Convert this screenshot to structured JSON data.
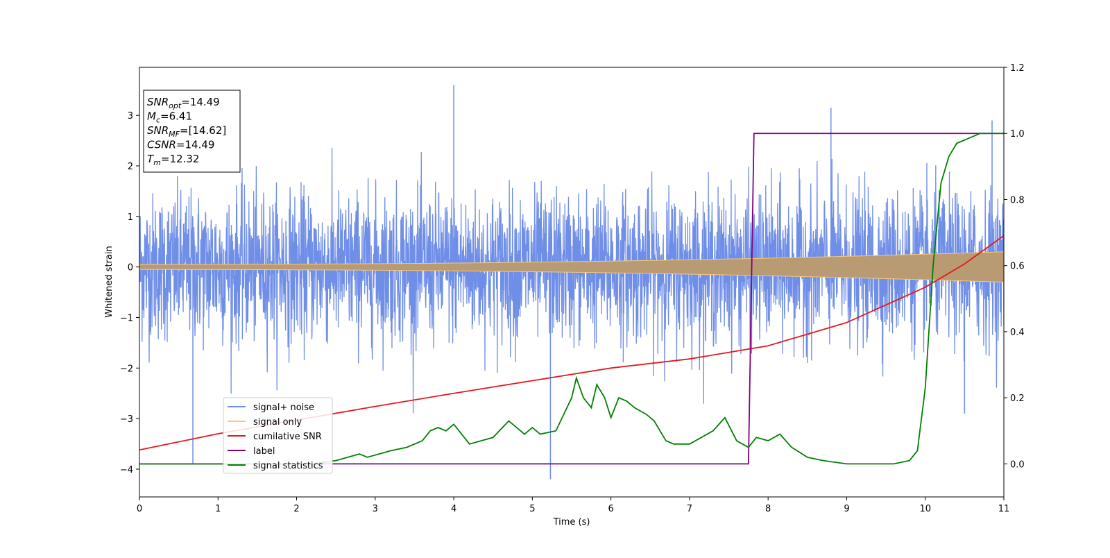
{
  "chart_data": {
    "type": "line",
    "xlabel": "Time (s)",
    "ylabel": "Whitened strain",
    "xlim": [
      0,
      11
    ],
    "ylim": [
      -4.55,
      3.95
    ],
    "y2lim": [
      -0.1,
      1.2
    ],
    "x_ticks": [
      0,
      1,
      2,
      3,
      4,
      5,
      6,
      7,
      8,
      9,
      10,
      11
    ],
    "y_ticks": [
      -4,
      -3,
      -2,
      -1,
      0,
      1,
      2,
      3
    ],
    "y2_ticks": [
      0.0,
      0.2,
      0.4,
      0.6,
      0.8,
      1.0,
      1.2
    ],
    "grid": false,
    "legend_position": "lower-left",
    "info_box": {
      "lines": [
        {
          "sym": "SNR",
          "sub": "opt",
          "rest": "=14.49"
        },
        {
          "sym": "M",
          "sub": "c",
          "rest": "=6.41"
        },
        {
          "sym": "SNR",
          "sub": "MF",
          "rest": "=[14.62]"
        },
        {
          "sym": "CSNR",
          "sub": "",
          "rest": "=14.49"
        },
        {
          "sym": "T",
          "sub": "m",
          "rest": "=12.32"
        }
      ]
    },
    "series": [
      {
        "name": "signal+ noise",
        "color": "#6f8ee8",
        "axis": "left",
        "description": "Noisy whitened strain, values roughly between -2 and 2 with spikes up to 3.6 and down to -4.2",
        "spikes": [
          [
            0.68,
            -3.9
          ],
          [
            4.0,
            3.6
          ],
          [
            5.23,
            -4.2
          ],
          [
            8.8,
            3.15
          ],
          [
            10.5,
            -2.9
          ],
          [
            10.85,
            2.9
          ]
        ]
      },
      {
        "name": "signal only",
        "color": "#f5c97a",
        "axis": "left",
        "description": "Chirp signal, amplitude growing from about 0.05 at t=0 to about 0.3 at t=11",
        "amplitude_start": 0.05,
        "amplitude_end": 0.3
      },
      {
        "name": "cumilative SNR",
        "color": "#e31a1c",
        "axis": "left",
        "x": [
          0,
          1,
          2,
          3,
          4,
          5,
          6,
          7,
          8,
          9,
          10,
          10.5,
          11
        ],
        "y": [
          -3.62,
          -3.3,
          -3.03,
          -2.76,
          -2.5,
          -2.25,
          -2.0,
          -1.82,
          -1.56,
          -1.1,
          -0.4,
          0.06,
          0.62
        ]
      },
      {
        "name": "label",
        "color": "#800080",
        "axis": "right",
        "x": [
          0,
          7.75,
          7.82,
          11
        ],
        "y": [
          0,
          0,
          1,
          1
        ]
      },
      {
        "name": "signal statistics",
        "color": "#008000",
        "axis": "right",
        "x": [
          0,
          1,
          2,
          2.2,
          2.5,
          2.8,
          2.9,
          3.2,
          3.4,
          3.6,
          3.7,
          3.8,
          3.9,
          4.0,
          4.1,
          4.2,
          4.5,
          4.7,
          4.8,
          4.9,
          5.0,
          5.1,
          5.3,
          5.4,
          5.5,
          5.56,
          5.65,
          5.75,
          5.82,
          5.92,
          6.0,
          6.1,
          6.2,
          6.3,
          6.45,
          6.55,
          6.7,
          6.8,
          7.0,
          7.15,
          7.3,
          7.45,
          7.6,
          7.75,
          7.85,
          8.0,
          8.15,
          8.3,
          8.5,
          8.7,
          9.0,
          9.3,
          9.6,
          9.8,
          9.9,
          10.0,
          10.1,
          10.2,
          10.3,
          10.4,
          10.5,
          10.7,
          11.0
        ],
        "y": [
          0.0,
          0.0,
          0.0,
          0.0,
          0.01,
          0.03,
          0.02,
          0.04,
          0.05,
          0.07,
          0.1,
          0.11,
          0.1,
          0.12,
          0.09,
          0.06,
          0.08,
          0.13,
          0.11,
          0.09,
          0.11,
          0.09,
          0.1,
          0.15,
          0.2,
          0.26,
          0.2,
          0.17,
          0.24,
          0.2,
          0.14,
          0.2,
          0.19,
          0.17,
          0.15,
          0.13,
          0.07,
          0.06,
          0.06,
          0.08,
          0.1,
          0.14,
          0.07,
          0.05,
          0.08,
          0.07,
          0.09,
          0.05,
          0.02,
          0.01,
          0.0,
          0.0,
          0.0,
          0.01,
          0.04,
          0.23,
          0.6,
          0.85,
          0.93,
          0.97,
          0.98,
          1.0,
          1.0
        ]
      }
    ]
  }
}
